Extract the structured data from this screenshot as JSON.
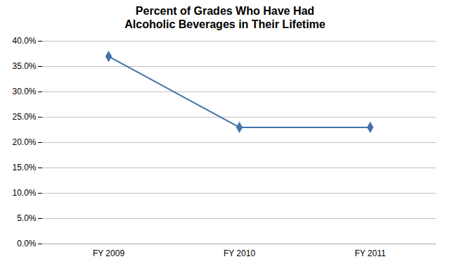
{
  "chart_data": {
    "type": "line",
    "title": "Percent of Grades Who Have Had\nAlcoholic Beverages in Their Lifetime",
    "categories": [
      "FY 2009",
      "FY 2010",
      "FY 2011"
    ],
    "values": [
      0.37,
      0.23,
      0.23
    ],
    "color": "#4472a8",
    "marker": "diamond",
    "ylim": [
      0.0,
      0.4
    ],
    "yticks": [
      {
        "value": 0.0,
        "label": "0.0%"
      },
      {
        "value": 0.05,
        "label": "5.0%"
      },
      {
        "value": 0.1,
        "label": "10.0%"
      },
      {
        "value": 0.15,
        "label": "15.0%"
      },
      {
        "value": 0.2,
        "label": "20.0%"
      },
      {
        "value": 0.25,
        "label": "25.0%"
      },
      {
        "value": 0.3,
        "label": "30.0%"
      },
      {
        "value": 0.35,
        "label": "35.0%"
      },
      {
        "value": 0.4,
        "label": "40.0%"
      }
    ],
    "grid": true
  }
}
